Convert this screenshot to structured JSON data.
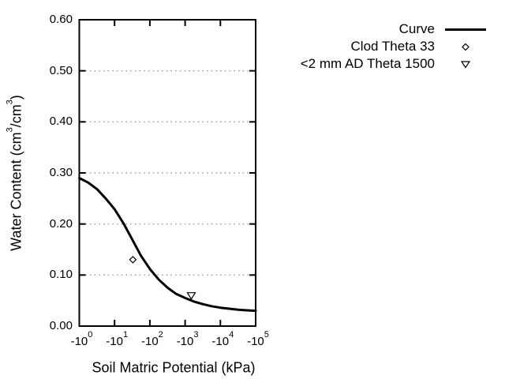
{
  "figure": {
    "background_color": "#ffffff",
    "axis_color": "#000000",
    "grid_color": "#999999",
    "curve_color": "#000000"
  },
  "chart_data": {
    "type": "line",
    "title": "",
    "xlabel": "Soil Matric Potential (kPa)",
    "ylabel": "Water Content (cm3/cm3)",
    "ylabel_parts": [
      {
        "text": "Water Content (cm"
      },
      {
        "text": "3",
        "sup": true
      },
      {
        "text": "/cm"
      },
      {
        "text": "3",
        "sup": true
      },
      {
        "text": ")"
      }
    ],
    "x_axis": {
      "scale": "log",
      "unit": "kPa",
      "tick_prefix": "-10",
      "tick_exponents": [
        "0",
        "1",
        "2",
        "3",
        "4",
        "5"
      ],
      "min_exponent": 0,
      "max_exponent": 5
    },
    "y_axis": {
      "min": 0,
      "max": 0.6,
      "tick_step": 0.1,
      "tick_labels": [
        "0.00",
        "0.10",
        "0.20",
        "0.30",
        "0.40",
        "0.50",
        "0.60"
      ],
      "grid": true
    },
    "legend_position": "top-right",
    "series": [
      {
        "name": "Curve",
        "kind": "line",
        "color": "#000000",
        "points_kpa_theta": [
          [
            -1,
            0.29
          ],
          [
            -1.8,
            0.281
          ],
          [
            -3.2,
            0.268
          ],
          [
            -5.6,
            0.25
          ],
          [
            -10,
            0.229
          ],
          [
            -18,
            0.201
          ],
          [
            -32,
            0.169
          ],
          [
            -56,
            0.138
          ],
          [
            -100,
            0.112
          ],
          [
            -180,
            0.091
          ],
          [
            -320,
            0.075
          ],
          [
            -560,
            0.063
          ],
          [
            -1000,
            0.055
          ],
          [
            -1800,
            0.048
          ],
          [
            -3200,
            0.043
          ],
          [
            -5600,
            0.039
          ],
          [
            -10000,
            0.036
          ],
          [
            -18000,
            0.034
          ],
          [
            -32000,
            0.032
          ],
          [
            -56000,
            0.031
          ],
          [
            -100000,
            0.03
          ]
        ]
      },
      {
        "name": "Clod Theta 33",
        "kind": "scatter",
        "marker": "diamond",
        "color": "#000000",
        "points_kpa_theta": [
          [
            -33,
            0.13
          ]
        ]
      },
      {
        "name": "<2 mm AD Theta 1500",
        "kind": "scatter",
        "marker": "triangle-down",
        "color": "#000000",
        "points_kpa_theta": [
          [
            -1500,
            0.06
          ]
        ]
      }
    ]
  }
}
